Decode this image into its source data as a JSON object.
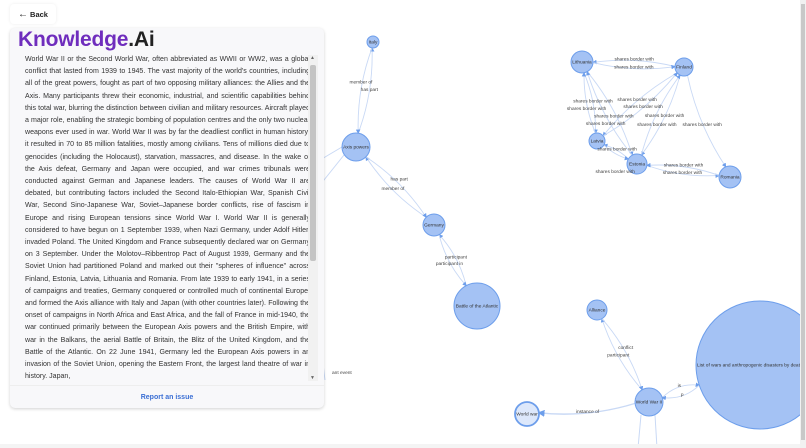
{
  "back": {
    "label": "Back",
    "icon": "arrow-left-icon"
  },
  "logo": {
    "part1": "Knowledge",
    "part2": ".Ai",
    "brand_color": "#6f2dbd"
  },
  "article": {
    "text": "World War II or the Second World War, often abbreviated as WWII or WW2, was a global conflict that lasted from 1939 to 1945. The vast majority of the world's countries, including all of the great powers, fought as part of two opposing military alliances: the Allies and the Axis. Many participants threw their economic, industrial, and scientific capabilities behind this total war, blurring the distinction between civilian and military resources. Aircraft played a major role, enabling the strategic bombing of population centres and the only two nuclear weapons ever used in war. World War II was by far the deadliest conflict in human history; it resulted in 70 to 85 million fatalities, mostly among civilians. Tens of millions died due to genocides (including the Holocaust), starvation, massacres, and disease. In the wake of the Axis defeat, Germany and Japan were occupied, and war crimes tribunals were conducted against German and Japanese leaders. The causes of World War II are debated, but contributing factors included the Second Italo-Ethiopian War, Spanish Civil War, Second Sino-Japanese War, Soviet–Japanese border conflicts, rise of fascism in Europe and rising European tensions since World War I. World War II is generally considered to have begun on 1 September 1939, when Nazi Germany, under Adolf Hitler, invaded Poland. The United Kingdom and France subsequently declared war on Germany on 3 September. Under the Molotov–Ribbentrop Pact of August 1939, Germany and the Soviet Union had partitioned Poland and marked out their \"spheres of influence\" across Finland, Estonia, Latvia, Lithuania and Romania. From late 1939 to early 1941, in a series of campaigns and treaties, Germany conquered or controlled much of continental Europe, and formed the Axis alliance with Italy and Japan (with other countries later). Following the onset of campaigns in North Africa and East Africa, and the fall of France in mid-1940, the war continued primarily between the European Axis powers and the British Empire, with war in the Balkans, the aerial Battle of Britain, the Blitz of the United Kingdom, and the Battle of the Atlantic. On 22 June 1941, Germany led the European Axis powers in an invasion of the Soviet Union, opening the Eastern Front, the largest land theatre of war in history. Japan,"
  },
  "report_label": "Report an issue",
  "graph": {
    "node_color": "#a4c2f4",
    "node_stroke": "#6d9eeb",
    "edge_color": "#c9d9f5",
    "nodes": [
      {
        "id": "italy",
        "label": "Italy"
      },
      {
        "id": "axis",
        "label": "Axis powers"
      },
      {
        "id": "germany",
        "label": "Germany"
      },
      {
        "id": "atlantic",
        "label": "Battle of the Atlantic"
      },
      {
        "id": "lithuania",
        "label": "Lithuania"
      },
      {
        "id": "finland",
        "label": "Finland"
      },
      {
        "id": "latvia",
        "label": "Latvia"
      },
      {
        "id": "estonia",
        "label": "Estonia"
      },
      {
        "id": "romania",
        "label": "Romania"
      },
      {
        "id": "alliance",
        "label": "Alliance"
      },
      {
        "id": "ww2",
        "label": "World War II"
      },
      {
        "id": "worldwar",
        "label": "World war"
      },
      {
        "id": "list",
        "label": "List of wars and anthropogenic disasters by death toll"
      }
    ],
    "edges": [
      {
        "from": "axis",
        "to": "italy",
        "label": "has part"
      },
      {
        "from": "italy",
        "to": "axis",
        "label": "member of"
      },
      {
        "from": "germany",
        "to": "axis",
        "label": "member of"
      },
      {
        "from": "axis",
        "to": "germany",
        "label": "has part"
      },
      {
        "from": "atlantic",
        "to": "germany",
        "label": "participant"
      },
      {
        "from": "germany",
        "to": "atlantic",
        "label": "participant in"
      },
      {
        "from": "finland",
        "to": "lithuania",
        "label": "shares border with"
      },
      {
        "from": "lithuania",
        "to": "finland",
        "label": "shares border with"
      },
      {
        "from": "lithuania",
        "to": "latvia",
        "label": "shares border with"
      },
      {
        "from": "latvia",
        "to": "lithuania",
        "label": "shares border with"
      },
      {
        "from": "finland",
        "to": "latvia",
        "label": "shares border with"
      },
      {
        "from": "latvia",
        "to": "finland",
        "label": "shares border with"
      },
      {
        "from": "lithuania",
        "to": "estonia",
        "label": "shares border with"
      },
      {
        "from": "estonia",
        "to": "lithuania",
        "label": "shares border with"
      },
      {
        "from": "finland",
        "to": "estonia",
        "label": "shares border with"
      },
      {
        "from": "estonia",
        "to": "finland",
        "label": "shares border with"
      },
      {
        "from": "finland",
        "to": "romania",
        "label": "shares border with"
      },
      {
        "from": "estonia",
        "to": "latvia",
        "label": "shares border with"
      },
      {
        "from": "latvia",
        "to": "estonia",
        "label": "shares border with"
      },
      {
        "from": "estonia",
        "to": "romania",
        "label": "shares border with"
      },
      {
        "from": "romania",
        "to": "estonia",
        "label": "shares border with"
      },
      {
        "from": "ww2",
        "to": "alliance",
        "label": "participant"
      },
      {
        "from": "alliance",
        "to": "ww2",
        "label": "conflict"
      },
      {
        "from": "ww2",
        "to": "worldwar",
        "label": "instance of"
      },
      {
        "from": "ww2",
        "to": "list",
        "label": "is"
      },
      {
        "from": "list",
        "to": "ww2",
        "label": "p"
      }
    ],
    "offscreen_edge_label": "ant event"
  }
}
